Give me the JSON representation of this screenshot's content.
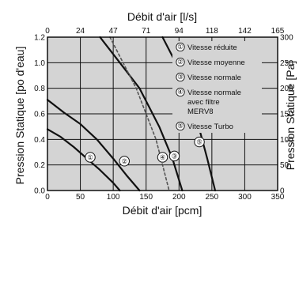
{
  "chart_data": {
    "type": "line",
    "xlabel_bottom": "Débit d'air  [pcm]",
    "xlabel_top": "Débit d'air  [l/s]",
    "ylabel_left": "Pression Statique [po d'eau]",
    "ylabel_right": "Pression Statique [Pa]",
    "xlim": [
      0,
      350
    ],
    "ylim": [
      0,
      1.2
    ],
    "grid": true,
    "background": "#d4d4d4",
    "x_ticks_bottom": [
      "0",
      "50",
      "100",
      "150",
      "200",
      "250",
      "300",
      "350"
    ],
    "x_ticks_top": [
      "0",
      "24",
      "47",
      "71",
      "94",
      "118",
      "142",
      "165"
    ],
    "y_ticks_left": [
      "0.0",
      "0.2",
      "0.4",
      "0.6",
      "0.8",
      "1.0",
      "1.2"
    ],
    "y_ticks_right": [
      "0",
      "50",
      "100",
      "150",
      "200",
      "250",
      "300"
    ],
    "series": [
      {
        "name": "Vitesse réduite",
        "marker": "①",
        "style": "solid",
        "color": "#111111",
        "label_at": [
          65,
          0.26
        ],
        "x": [
          0,
          20,
          40,
          60,
          80,
          100,
          110
        ],
        "y": [
          0.48,
          0.42,
          0.34,
          0.25,
          0.16,
          0.06,
          0.0
        ]
      },
      {
        "name": "Vitesse moyenne",
        "marker": "②",
        "style": "solid",
        "color": "#111111",
        "label_at": [
          117,
          0.23
        ],
        "x": [
          0,
          25,
          50,
          75,
          100,
          120,
          140
        ],
        "y": [
          0.71,
          0.61,
          0.52,
          0.4,
          0.25,
          0.12,
          0.0
        ]
      },
      {
        "name": "Vitesse normale",
        "marker": "③",
        "style": "solid",
        "color": "#111111",
        "label_at": [
          193,
          0.27
        ],
        "x": [
          80,
          110,
          140,
          170,
          190,
          205
        ],
        "y": [
          1.2,
          1.0,
          0.8,
          0.5,
          0.25,
          0.0
        ]
      },
      {
        "name": "Vitesse normale avec filtre MERV8",
        "marker": "④",
        "style": "dashed",
        "color": "#555555",
        "label_at": [
          175,
          0.26
        ],
        "x": [
          95,
          115,
          135,
          150,
          165,
          175,
          185
        ],
        "y": [
          1.2,
          1.0,
          0.8,
          0.6,
          0.4,
          0.2,
          0.0
        ]
      },
      {
        "name": "Vitesse Turbo",
        "marker": "⑤",
        "style": "solid",
        "color": "#111111",
        "label_at": [
          231,
          0.38
        ],
        "x": [
          175,
          195,
          215,
          230,
          243,
          255
        ],
        "y": [
          1.2,
          1.0,
          0.75,
          0.5,
          0.25,
          0.0
        ]
      }
    ],
    "legend": {
      "placement": "top-right",
      "entries": [
        {
          "marker": "①",
          "lines": [
            "Vitesse réduite"
          ]
        },
        {
          "marker": "②",
          "lines": [
            "Vitesse moyenne"
          ]
        },
        {
          "marker": "③",
          "lines": [
            "Vitesse normale"
          ]
        },
        {
          "marker": "④",
          "lines": [
            "Vitesse normale",
            "avec filtre",
            "MERV8"
          ]
        },
        {
          "marker": "⑤",
          "lines": [
            "Vitesse Turbo"
          ]
        }
      ]
    }
  }
}
